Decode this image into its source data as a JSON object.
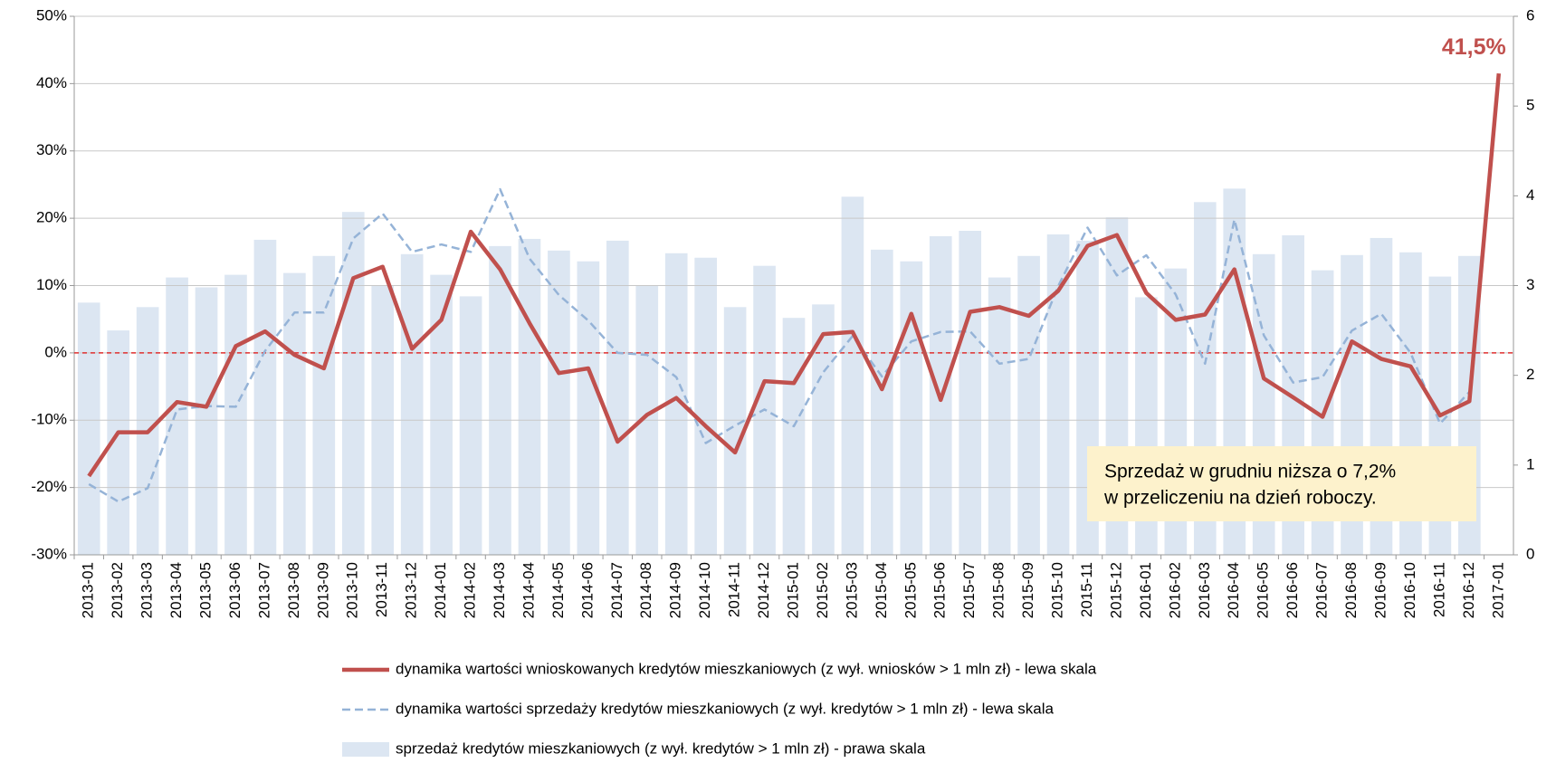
{
  "chart_data": {
    "type": "combo",
    "categories": [
      "2013-01",
      "2013-02",
      "2013-03",
      "2013-04",
      "2013-05",
      "2013-06",
      "2013-07",
      "2013-08",
      "2013-09",
      "2013-10",
      "2013-11",
      "2013-12",
      "2014-01",
      "2014-02",
      "2014-03",
      "2014-04",
      "2014-05",
      "2014-06",
      "2014-07",
      "2014-08",
      "2014-09",
      "2014-10",
      "2014-11",
      "2014-12",
      "2015-01",
      "2015-02",
      "2015-03",
      "2015-04",
      "2015-05",
      "2015-06",
      "2015-07",
      "2015-08",
      "2015-09",
      "2015-10",
      "2015-11",
      "2015-12",
      "2016-01",
      "2016-02",
      "2016-03",
      "2016-04",
      "2016-05",
      "2016-06",
      "2016-07",
      "2016-08",
      "2016-09",
      "2016-10",
      "2016-11",
      "2016-12",
      "2017-01"
    ],
    "series": [
      {
        "name": "dynamika wartości wnioskowanych kredytów mieszkaniowych (z wył. wniosków > 1 mln zł) - lewa skala",
        "type": "line",
        "line_style": "solid",
        "color": "#c0504d",
        "values": [
          -18.3,
          -11.8,
          -11.8,
          -7.3,
          -8.0,
          1.0,
          3.2,
          -0.3,
          -2.3,
          11.1,
          12.8,
          0.6,
          4.9,
          18.0,
          12.4,
          4.4,
          -3.0,
          -2.3,
          -13.2,
          -9.2,
          -6.7,
          -10.9,
          -14.8,
          -4.2,
          -4.5,
          2.8,
          3.1,
          -5.4,
          5.8,
          -7.0,
          6.1,
          6.8,
          5.5,
          9.2,
          15.9,
          17.5,
          8.9,
          4.9,
          5.7,
          12.4,
          -3.8,
          -6.6,
          -9.5,
          1.7,
          -0.9,
          -2.0,
          -9.3,
          -7.2,
          41.5
        ],
        "value_labels": [
          null,
          null,
          null,
          null,
          null,
          null,
          null,
          null,
          null,
          null,
          null,
          null,
          null,
          null,
          null,
          null,
          null,
          null,
          null,
          null,
          null,
          null,
          null,
          null,
          null,
          null,
          null,
          null,
          null,
          null,
          null,
          null,
          null,
          null,
          null,
          null,
          null,
          null,
          null,
          null,
          null,
          null,
          null,
          null,
          null,
          null,
          null,
          null,
          "41,5%"
        ]
      },
      {
        "name": "dynamika wartości sprzedaży kredytów mieszkaniowych (z wył. kredytów > 1 mln zł) - lewa skala",
        "type": "line",
        "line_style": "dashed",
        "color": "#95b3d7",
        "values": [
          -19.5,
          -22.1,
          -20.1,
          -8.4,
          -7.9,
          -8.0,
          0.3,
          6.0,
          6.0,
          17.0,
          20.7,
          15.0,
          16.1,
          15.0,
          24.3,
          14.0,
          8.6,
          4.8,
          0.0,
          -0.3,
          -3.6,
          -13.4,
          -10.8,
          -8.4,
          -10.9,
          -2.9,
          2.5,
          -3.5,
          1.7,
          3.1,
          3.2,
          -1.6,
          -0.9,
          9.9,
          18.6,
          11.5,
          14.5,
          8.7,
          -1.6,
          19.8,
          2.6,
          -4.4,
          -3.6,
          3.3,
          5.8,
          0.0,
          -10.5,
          -5.8,
          null
        ]
      },
      {
        "name": "sprzedaż kredytów mieszkaniowych (z wył. kredytów > 1 mln zł) - prawa skala",
        "type": "bar",
        "axis": "y2",
        "color": "#dce6f2",
        "values": [
          2.81,
          2.5,
          2.76,
          3.09,
          2.98,
          3.12,
          3.51,
          3.14,
          3.33,
          3.82,
          3.0,
          3.35,
          3.12,
          2.88,
          3.44,
          3.52,
          3.39,
          3.27,
          3.5,
          3.0,
          3.36,
          3.31,
          2.76,
          3.22,
          2.64,
          2.79,
          3.99,
          3.4,
          3.27,
          3.55,
          3.61,
          3.09,
          3.33,
          3.57,
          3.5,
          3.76,
          2.87,
          3.19,
          3.93,
          4.08,
          3.35,
          3.56,
          3.17,
          3.34,
          3.53,
          3.37,
          3.1,
          3.33,
          null
        ]
      }
    ],
    "ylim": [
      -30,
      50
    ],
    "yticks": [
      {
        "value": -30,
        "label": "-30%"
      },
      {
        "value": -20,
        "label": "-20%"
      },
      {
        "value": -10,
        "label": "-10%"
      },
      {
        "value": 0,
        "label": "0%"
      },
      {
        "value": 10,
        "label": "10%"
      },
      {
        "value": 20,
        "label": "20%"
      },
      {
        "value": 30,
        "label": "30%"
      },
      {
        "value": 40,
        "label": "40%"
      },
      {
        "value": 50,
        "label": "50%"
      }
    ],
    "y2lim": [
      0,
      6
    ],
    "y2ticks": [
      0,
      1,
      2,
      3,
      4,
      5,
      6
    ],
    "grid": true,
    "reference_line": {
      "value": 0,
      "color": "#e03030"
    },
    "annotation": [
      "Sprzedaż w grudniu niższa o 7,2%",
      "w przeliczeniu na dzień roboczy."
    ],
    "legend": "bottom"
  }
}
